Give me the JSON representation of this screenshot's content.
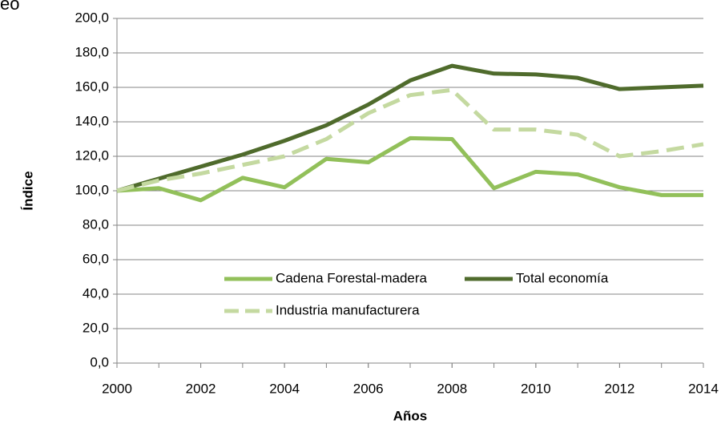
{
  "chart_data": {
    "type": "line",
    "title": "eo",
    "x_label": "Años",
    "y_label": "Índice",
    "x": [
      2000,
      2001,
      2002,
      2003,
      2004,
      2005,
      2006,
      2007,
      2008,
      2009,
      2010,
      2011,
      2012,
      2013,
      2014
    ],
    "series": [
      {
        "name": "Cadena Forestal-madera",
        "color": "#92c05a",
        "dash": false,
        "values": [
          100,
          101.5,
          94.5,
          107.5,
          102,
          118.5,
          116.5,
          130.5,
          130,
          101.5,
          111,
          109.5,
          102,
          97.5,
          97.5
        ]
      },
      {
        "name": "Total economía",
        "color": "#4f6b2c",
        "dash": false,
        "values": [
          100,
          107,
          114,
          121,
          129,
          138,
          150,
          164,
          172.5,
          168,
          167.5,
          165.5,
          159,
          160,
          161
        ]
      },
      {
        "name": "Industria manufacturera",
        "color": "#c4d9a0",
        "dash": true,
        "values": [
          100,
          106,
          110,
          115,
          120,
          130,
          145,
          155.5,
          158.5,
          135.5,
          135.5,
          132.5,
          120,
          123,
          127
        ]
      }
    ],
    "xlim": [
      2000,
      2014
    ],
    "xticks": [
      2000,
      2002,
      2004,
      2006,
      2008,
      2010,
      2012,
      2014
    ],
    "ylim": [
      0,
      200
    ],
    "yticks": [
      {
        "value": 0,
        "label": "0,0"
      },
      {
        "value": 20,
        "label": "20,0"
      },
      {
        "value": 40,
        "label": "40,0"
      },
      {
        "value": 60,
        "label": "60,0"
      },
      {
        "value": 80,
        "label": "80,0"
      },
      {
        "value": 100,
        "label": "100,0"
      },
      {
        "value": 120,
        "label": "120,0"
      },
      {
        "value": 140,
        "label": "140,0"
      },
      {
        "value": 160,
        "label": "160,0"
      },
      {
        "value": 180,
        "label": "180,0"
      },
      {
        "value": 200,
        "label": "200,0"
      }
    ],
    "grid": true
  }
}
